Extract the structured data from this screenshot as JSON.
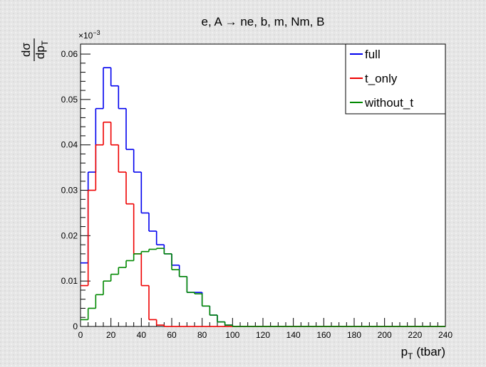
{
  "chart_data": {
    "type": "histogram",
    "title": "e, A → ne, b, m, Nm, B",
    "y_label": {
      "numerator": "dσ",
      "denominator": "dp",
      "denominator_sub": "T"
    },
    "y_multiplier": {
      "base": "×10",
      "exponent": "−3"
    },
    "x_label": {
      "main": "p",
      "sub": "T",
      "rest": "(tbar)"
    },
    "bins": [
      0,
      5,
      10,
      15,
      20,
      25,
      30,
      35,
      40,
      45,
      50,
      55,
      60,
      65,
      70,
      75,
      80,
      85,
      90,
      95,
      100,
      105,
      110,
      115,
      120,
      125,
      130,
      135,
      140,
      145,
      150,
      155,
      160,
      165,
      170,
      175,
      180,
      185,
      190,
      195,
      200,
      205,
      210,
      215,
      220,
      225,
      230,
      235,
      240
    ],
    "series": [
      {
        "name": "full",
        "color": "#0000ee",
        "values": [
          0.014,
          0.034,
          0.048,
          0.057,
          0.053,
          0.048,
          0.039,
          0.034,
          0.025,
          0.021,
          0.018,
          0.016,
          0.0135,
          0.011,
          0.0075,
          0.0075,
          0.0045,
          0.0025,
          0.001,
          0.0003,
          0,
          0,
          0,
          0,
          0,
          0,
          0,
          0,
          0,
          0,
          0,
          0,
          0,
          0,
          0,
          0,
          0,
          0,
          0,
          0,
          0,
          0,
          0,
          0,
          0,
          0,
          0,
          0
        ]
      },
      {
        "name": "t_only",
        "color": "#ee0000",
        "values": [
          0.009,
          0.03,
          0.04,
          0.045,
          0.04,
          0.034,
          0.027,
          0.016,
          0.009,
          0.0015,
          0.0003,
          0,
          0,
          0,
          0,
          0,
          0,
          0,
          0,
          0,
          0,
          0,
          0,
          0,
          0,
          0,
          0,
          0,
          0,
          0,
          0,
          0,
          0,
          0,
          0,
          0,
          0,
          0,
          0,
          0,
          0,
          0,
          0,
          0,
          0,
          0,
          0,
          0
        ]
      },
      {
        "name": "without_t",
        "color": "#008800",
        "values": [
          0.0015,
          0.004,
          0.007,
          0.01,
          0.0115,
          0.013,
          0.0145,
          0.016,
          0.0165,
          0.017,
          0.0172,
          0.016,
          0.0125,
          0.011,
          0.0075,
          0.0072,
          0.0045,
          0.0025,
          0.001,
          0.0003,
          0,
          0,
          0,
          0,
          0,
          0,
          0,
          0,
          0,
          0,
          0,
          0,
          0,
          0,
          0,
          0,
          0,
          0,
          0,
          0,
          0,
          0,
          0,
          0,
          0,
          0,
          0,
          0
        ]
      }
    ],
    "xlim": [
      0,
      240
    ],
    "xticks": [
      0,
      20,
      40,
      60,
      80,
      100,
      120,
      140,
      160,
      180,
      200,
      220,
      240
    ],
    "ylim": [
      0,
      0.0622
    ],
    "yticks": [
      0,
      0.01,
      0.02,
      0.03,
      0.04,
      0.05,
      0.06
    ],
    "legend": "top-right"
  }
}
